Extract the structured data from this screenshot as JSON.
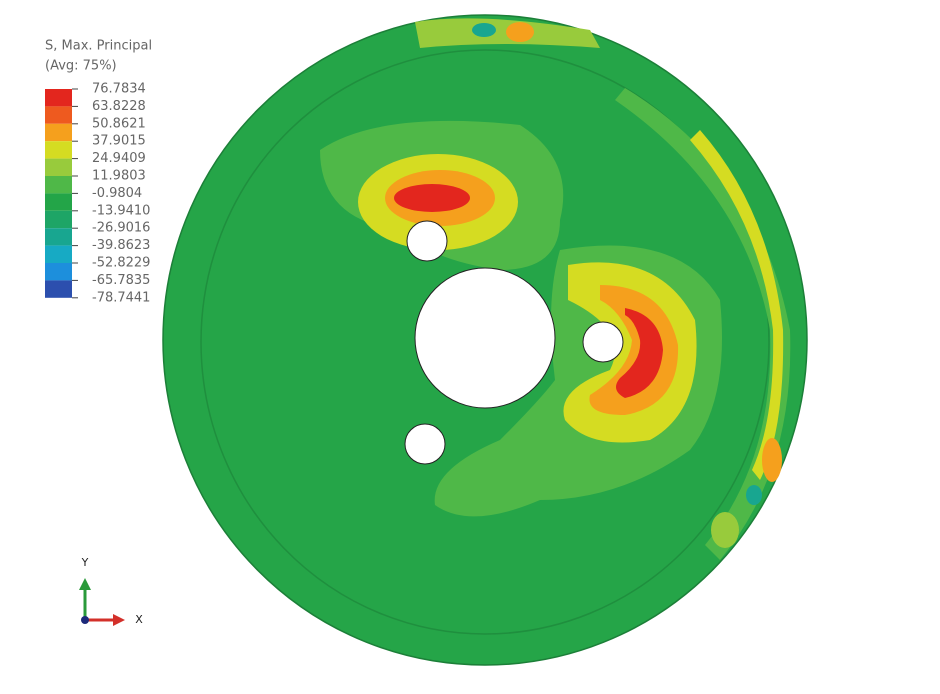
{
  "legend": {
    "title": "S, Max. Principal",
    "subtitle": "(Avg: 75%)",
    "labels": [
      "76.7834",
      "63.8228",
      "50.8621",
      "37.9015",
      "24.9409",
      "11.9803",
      "-0.9804",
      "-13.9410",
      "-26.9016",
      "-39.8623",
      "-52.8229",
      "-65.7835",
      "-78.7441"
    ],
    "colors": [
      "#e3261e",
      "#ee5a1f",
      "#f5a01d",
      "#d5dc22",
      "#98cb3c",
      "#4fb848",
      "#23a548",
      "#1ea566",
      "#18a690",
      "#17aac4",
      "#1d8fdc",
      "#2c4fae"
    ]
  },
  "axes": {
    "y": "Y",
    "x": "X"
  }
}
